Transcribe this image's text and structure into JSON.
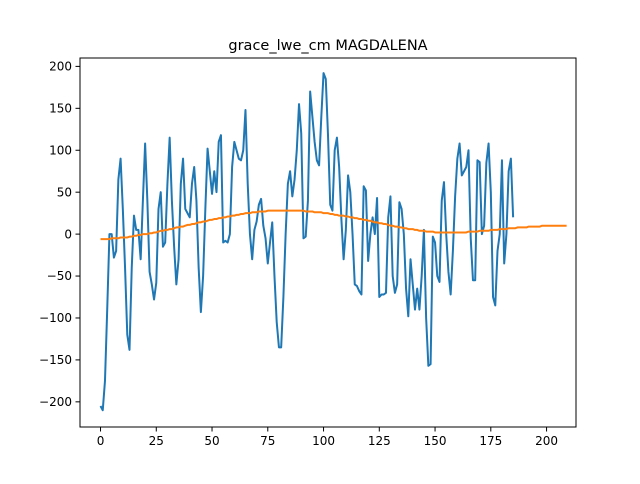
{
  "chart_data": {
    "type": "line",
    "title": "grace_lwe_cm MAGDALENA",
    "xlabel": "",
    "ylabel": "",
    "xlim": [
      -9.2,
      213.2
    ],
    "ylim": [
      -230,
      210
    ],
    "x_ticks": [
      0,
      25,
      50,
      75,
      100,
      125,
      150,
      175,
      200
    ],
    "y_ticks": [
      -200,
      -150,
      -100,
      -50,
      0,
      50,
      100,
      150,
      200
    ],
    "grid": false,
    "legend": "none",
    "series": [
      {
        "color": "#1f77b4",
        "values": [
          -205,
          -210,
          -175,
          -90,
          0,
          0,
          -28,
          -20,
          65,
          90,
          30,
          -40,
          -120,
          -138,
          -40,
          22,
          5,
          5,
          -30,
          40,
          108,
          40,
          -45,
          -60,
          -78,
          -58,
          30,
          50,
          -15,
          -10,
          60,
          115,
          40,
          -15,
          -60,
          -30,
          60,
          90,
          30,
          25,
          20,
          60,
          80,
          40,
          -40,
          -93,
          -50,
          30,
          102,
          75,
          48,
          75,
          50,
          110,
          118,
          -10,
          -8,
          -10,
          0,
          80,
          110,
          100,
          90,
          88,
          100,
          148,
          60,
          0,
          -30,
          5,
          15,
          35,
          42,
          10,
          -5,
          -35,
          -10,
          14,
          -50,
          -105,
          -135,
          -135,
          -75,
          0,
          60,
          75,
          45,
          65,
          100,
          155,
          120,
          -5,
          -3,
          40,
          170,
          140,
          110,
          88,
          82,
          140,
          192,
          185,
          118,
          35,
          28,
          100,
          115,
          80,
          18,
          -30,
          5,
          70,
          50,
          0,
          -60,
          -62,
          -68,
          -72,
          57,
          52,
          -32,
          0,
          20,
          0,
          43,
          -75,
          -72,
          -72,
          -70,
          20,
          45,
          -50,
          -70,
          -60,
          38,
          30,
          0,
          -65,
          -98,
          -30,
          -60,
          -90,
          -65,
          -90,
          -50,
          5,
          -100,
          -157,
          -155,
          -3,
          -10,
          -50,
          -57,
          40,
          62,
          0,
          -45,
          -72,
          -20,
          45,
          90,
          108,
          70,
          75,
          80,
          100,
          -5,
          -55,
          -55,
          88,
          86,
          0,
          10,
          85,
          108,
          50,
          -75,
          -85,
          -20,
          0,
          88,
          -35,
          0,
          75,
          90,
          20
        ]
      },
      {
        "color": "#ff7f0e",
        "values": [
          -6,
          -6,
          -6,
          -6,
          -6,
          -5,
          -5,
          -5,
          -5,
          -4,
          -4,
          -4,
          -4,
          -3,
          -3,
          -2,
          -2,
          -1,
          -1,
          0,
          0,
          0,
          1,
          1,
          2,
          2,
          3,
          4,
          4,
          5,
          5,
          6,
          6,
          7,
          8,
          8,
          9,
          9,
          10,
          11,
          11,
          12,
          12,
          13,
          14,
          14,
          15,
          15,
          16,
          17,
          17,
          18,
          18,
          19,
          19,
          20,
          20,
          21,
          21,
          22,
          22,
          23,
          23,
          24,
          24,
          25,
          25,
          25,
          26,
          26,
          26,
          27,
          27,
          27,
          27,
          28,
          28,
          28,
          28,
          28,
          28,
          28,
          28,
          28,
          28,
          28,
          28,
          28,
          28,
          28,
          28,
          28,
          27,
          27,
          27,
          27,
          26,
          26,
          26,
          26,
          25,
          25,
          25,
          24,
          24,
          23,
          23,
          22,
          22,
          22,
          21,
          21,
          20,
          20,
          19,
          19,
          18,
          18,
          17,
          17,
          16,
          16,
          15,
          14,
          14,
          13,
          13,
          12,
          12,
          11,
          10,
          10,
          9,
          9,
          8,
          8,
          7,
          7,
          6,
          6,
          6,
          5,
          5,
          4,
          4,
          4,
          3,
          3,
          3,
          3,
          2,
          2,
          2,
          2,
          2,
          2,
          2,
          2,
          2,
          2,
          2,
          2,
          2,
          2,
          2,
          3,
          3,
          3,
          3,
          3,
          4,
          4,
          4,
          4,
          4,
          5,
          5,
          5,
          5,
          6,
          6,
          6,
          6,
          7,
          7,
          7,
          7,
          8,
          8,
          8,
          8,
          8,
          9,
          9,
          9,
          9,
          9,
          9,
          10,
          10,
          10,
          10,
          10,
          10,
          10,
          10,
          10,
          10,
          10,
          10
        ]
      }
    ]
  }
}
